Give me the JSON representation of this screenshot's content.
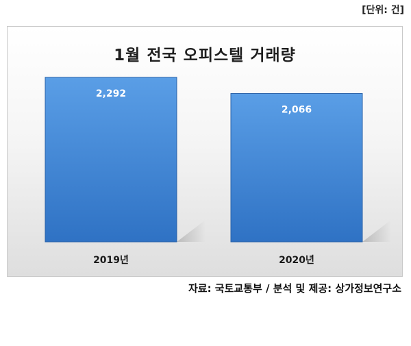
{
  "unit_label": "[단위: 건]",
  "source_label": "자료: 국토교통부 / 분석 및 제공: 상가정보연구소",
  "chart_data": {
    "type": "bar",
    "title": "1월 전국 오피스텔 거래량",
    "categories": [
      "2019년",
      "2020년"
    ],
    "values": [
      2292,
      2066
    ],
    "value_labels": [
      "2,292",
      "2,066"
    ],
    "xlabel": "",
    "ylabel": "",
    "ylim": [
      0,
      2500
    ],
    "grid": false,
    "legend": "none",
    "colors": {
      "bar_top": "#5a9ee6",
      "bar_bottom": "#2f72c4",
      "bar_edge": "#2a62a8"
    }
  }
}
